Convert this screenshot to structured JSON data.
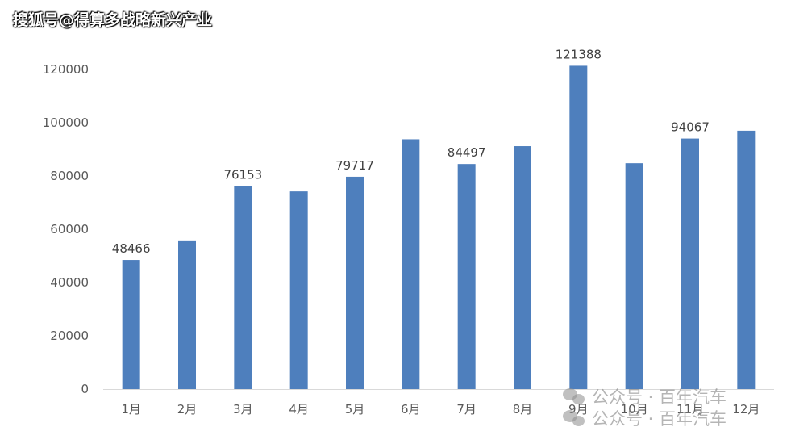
{
  "watermarks": {
    "top_left": "搜狐号@得算多战略新兴产业",
    "bottom_1": "公众号 · 百年汽车",
    "bottom_2": "公众号 · 百年汽车",
    "icon": "wechat-icon"
  },
  "colors": {
    "bar": "#4e7fbd"
  },
  "chart_data": {
    "type": "bar",
    "title": "",
    "xlabel": "",
    "ylabel": "",
    "categories": [
      "1月",
      "2月",
      "3月",
      "4月",
      "5月",
      "6月",
      "7月",
      "8月",
      "9月",
      "10月",
      "11月",
      "12月"
    ],
    "values": [
      48466,
      55800,
      76153,
      74200,
      79717,
      93800,
      84497,
      91200,
      121388,
      84800,
      94067,
      97000
    ],
    "data_labels": [
      "48466",
      "",
      "76153",
      "",
      "79717",
      "",
      "84497",
      "",
      "121388",
      "",
      "94067",
      ""
    ],
    "ylim": [
      0,
      120000
    ],
    "yticks": [
      0,
      20000,
      40000,
      60000,
      80000,
      100000,
      120000
    ],
    "ytick_labels": [
      "0",
      "20000",
      "40000",
      "60000",
      "80000",
      "100000",
      "120000"
    ],
    "grid": false,
    "legend": "none"
  }
}
